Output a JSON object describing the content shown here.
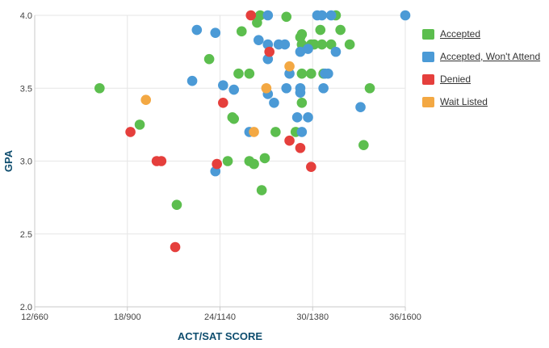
{
  "chart_data": {
    "type": "scatter",
    "xlabel": "ACT/SAT SCORE",
    "ylabel": "GPA",
    "x_ticks": [
      {
        "value": 12,
        "label": "12/660"
      },
      {
        "value": 18,
        "label": "18/900"
      },
      {
        "value": 24,
        "label": "24/1140"
      },
      {
        "value": 30,
        "label": "30/1380"
      },
      {
        "value": 36,
        "label": "36/1600"
      }
    ],
    "xlim": [
      12,
      36
    ],
    "y_ticks": [
      {
        "value": 2.0,
        "label": "2.0"
      },
      {
        "value": 2.5,
        "label": "2.5"
      },
      {
        "value": 3.0,
        "label": "3.0"
      },
      {
        "value": 3.5,
        "label": "3.5"
      },
      {
        "value": 4.0,
        "label": "4.0"
      }
    ],
    "ylim": [
      2.0,
      4.0
    ],
    "grid": true,
    "legend_position": "right",
    "series": [
      {
        "name": "Accepted",
        "color": "#5cbe4e",
        "points": [
          [
            16.2,
            3.5
          ],
          [
            18.8,
            3.25
          ],
          [
            21.2,
            2.7
          ],
          [
            23.3,
            3.7
          ],
          [
            24.5,
            3.0
          ],
          [
            24.8,
            3.3
          ],
          [
            24.9,
            3.29
          ],
          [
            25.2,
            3.6
          ],
          [
            25.4,
            3.89
          ],
          [
            25.9,
            3.6
          ],
          [
            25.9,
            3.0
          ],
          [
            26.2,
            2.98
          ],
          [
            26.4,
            3.95
          ],
          [
            26.6,
            4.0
          ],
          [
            26.7,
            2.8
          ],
          [
            26.9,
            3.02
          ],
          [
            27.6,
            3.2
          ],
          [
            28.3,
            3.99
          ],
          [
            28.9,
            3.2
          ],
          [
            29.2,
            3.85
          ],
          [
            29.3,
            3.87
          ],
          [
            29.3,
            3.8
          ],
          [
            29.3,
            3.6
          ],
          [
            29.3,
            3.4
          ],
          [
            29.9,
            3.6
          ],
          [
            29.9,
            3.8
          ],
          [
            30.1,
            3.8
          ],
          [
            30.5,
            3.9
          ],
          [
            30.6,
            3.8
          ],
          [
            30.7,
            3.6
          ],
          [
            31.2,
            3.8
          ],
          [
            31.5,
            4.0
          ],
          [
            31.8,
            3.9
          ],
          [
            32.4,
            3.8
          ],
          [
            33.3,
            3.11
          ],
          [
            33.7,
            3.5
          ]
        ]
      },
      {
        "name": "Accepted, Won't Attend",
        "color": "#4b9ad6",
        "points": [
          [
            22.2,
            3.55
          ],
          [
            22.5,
            3.9
          ],
          [
            23.7,
            3.88
          ],
          [
            23.7,
            2.93
          ],
          [
            24.2,
            3.52
          ],
          [
            24.9,
            3.49
          ],
          [
            25.9,
            3.2
          ],
          [
            26.5,
            3.83
          ],
          [
            27.1,
            3.8
          ],
          [
            27.1,
            3.46
          ],
          [
            27.1,
            3.7
          ],
          [
            27.1,
            4.0
          ],
          [
            27.5,
            3.4
          ],
          [
            27.8,
            3.8
          ],
          [
            28.2,
            3.8
          ],
          [
            28.3,
            3.5
          ],
          [
            28.5,
            3.6
          ],
          [
            29.0,
            3.3
          ],
          [
            29.2,
            3.75
          ],
          [
            29.2,
            3.5
          ],
          [
            29.2,
            3.47
          ],
          [
            29.3,
            3.2
          ],
          [
            29.7,
            3.3
          ],
          [
            29.7,
            3.77
          ],
          [
            30.3,
            4.0
          ],
          [
            30.6,
            4.0
          ],
          [
            30.7,
            3.5
          ],
          [
            30.8,
            3.6
          ],
          [
            31.0,
            3.6
          ],
          [
            31.2,
            4.0
          ],
          [
            31.5,
            3.75
          ],
          [
            33.1,
            3.37
          ],
          [
            36.0,
            4.0
          ]
        ]
      },
      {
        "name": "Denied",
        "color": "#e53f3c",
        "points": [
          [
            18.2,
            3.2
          ],
          [
            19.9,
            3.0
          ],
          [
            20.2,
            3.0
          ],
          [
            21.1,
            2.41
          ],
          [
            23.8,
            2.98
          ],
          [
            24.2,
            3.4
          ],
          [
            26.0,
            4.0
          ],
          [
            27.2,
            3.75
          ],
          [
            28.5,
            3.14
          ],
          [
            29.2,
            3.09
          ],
          [
            29.9,
            2.96
          ]
        ]
      },
      {
        "name": "Wait Listed",
        "color": "#f3a843",
        "points": [
          [
            19.2,
            3.42
          ],
          [
            26.2,
            3.2
          ],
          [
            27.0,
            3.5
          ],
          [
            28.5,
            3.65
          ]
        ]
      }
    ]
  },
  "legend": {
    "items": [
      {
        "label": "Accepted",
        "color": "#5cbe4e"
      },
      {
        "label": "Accepted, Won't Attend",
        "color": "#4b9ad6"
      },
      {
        "label": "Denied",
        "color": "#e53f3c"
      },
      {
        "label": "Wait Listed",
        "color": "#f3a843"
      }
    ]
  }
}
